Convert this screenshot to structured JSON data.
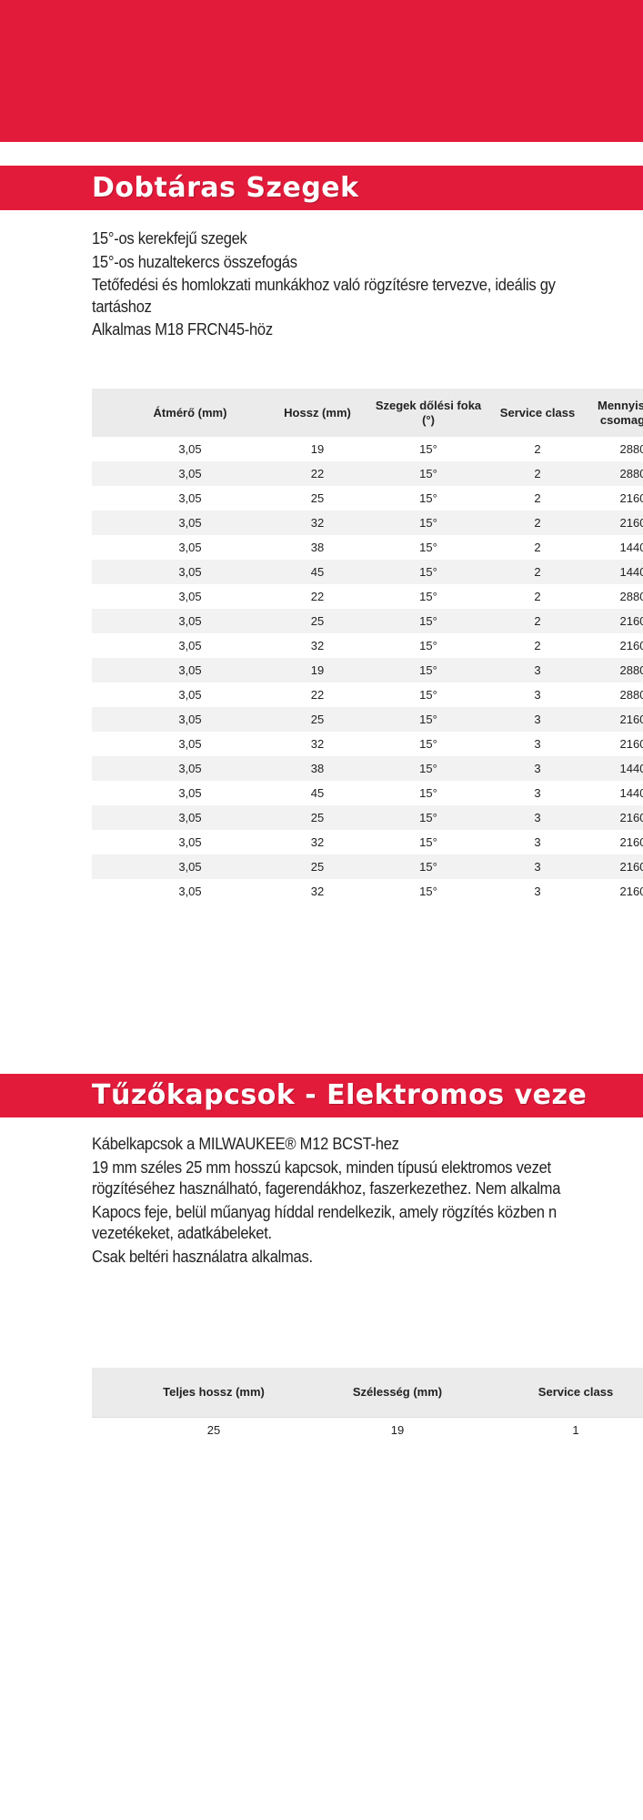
{
  "colors": {
    "brand_red": "#e31b3b",
    "header_gray": "#ebebeb",
    "row_alt": "#f2f2f2"
  },
  "section1": {
    "title": "Dobtáras Szegek",
    "lines": [
      "15°-os kerekfejű szegek",
      "15°-os huzaltekercs összefogás",
      "Tetőfedési és homlokzati munkákhoz való rögzítésre tervezve, ideális gy",
      "tartáshoz",
      "Alkalmas M18 FRCN45-höz"
    ],
    "table": {
      "headers": [
        "Átmérő (mm)",
        "Hossz (mm)",
        "Szegek dőlési foka (°)",
        "Service class",
        "Mennyiség a csomagban"
      ],
      "rows": [
        [
          "3,05",
          "19",
          "15°",
          "2",
          "2880"
        ],
        [
          "3,05",
          "22",
          "15°",
          "2",
          "2880"
        ],
        [
          "3,05",
          "25",
          "15°",
          "2",
          "2160"
        ],
        [
          "3,05",
          "32",
          "15°",
          "2",
          "2160"
        ],
        [
          "3,05",
          "38",
          "15°",
          "2",
          "1440"
        ],
        [
          "3,05",
          "45",
          "15°",
          "2",
          "1440"
        ],
        [
          "3,05",
          "22",
          "15°",
          "2",
          "2880"
        ],
        [
          "3,05",
          "25",
          "15°",
          "2",
          "2160"
        ],
        [
          "3,05",
          "32",
          "15°",
          "2",
          "2160"
        ],
        [
          "3,05",
          "19",
          "15°",
          "3",
          "2880"
        ],
        [
          "3,05",
          "22",
          "15°",
          "3",
          "2880"
        ],
        [
          "3,05",
          "25",
          "15°",
          "3",
          "2160"
        ],
        [
          "3,05",
          "32",
          "15°",
          "3",
          "2160"
        ],
        [
          "3,05",
          "38",
          "15°",
          "3",
          "1440"
        ],
        [
          "3,05",
          "45",
          "15°",
          "3",
          "1440"
        ],
        [
          "3,05",
          "25",
          "15°",
          "3",
          "2160"
        ],
        [
          "3,05",
          "32",
          "15°",
          "3",
          "2160"
        ],
        [
          "3,05",
          "25",
          "15°",
          "3",
          "2160"
        ],
        [
          "3,05",
          "32",
          "15°",
          "3",
          "2160"
        ]
      ]
    }
  },
  "section2": {
    "title": "Tűzőkapcsok - Elektromos veze",
    "lines": [
      "Kábelkapcsok a MILWAUKEE® M12 BCST-hez",
      "19 mm széles 25 mm hosszú kapcsok, minden típusú elektromos vezet",
      "rögzítéséhez használható, fagerendákhoz, faszerkezethez. Nem alkalma",
      "Kapocs feje, belül műanyag híddal rendelkezik, amely rögzítés közben n",
      "vezetékeket, adatkábeleket.",
      "Csak beltéri használatra alkalmas."
    ],
    "table": {
      "headers": [
        "Teljes hossz  (mm)",
        "Szélesség (mm)",
        "Service class"
      ],
      "rows": [
        [
          "25",
          "19",
          "1"
        ]
      ]
    }
  }
}
